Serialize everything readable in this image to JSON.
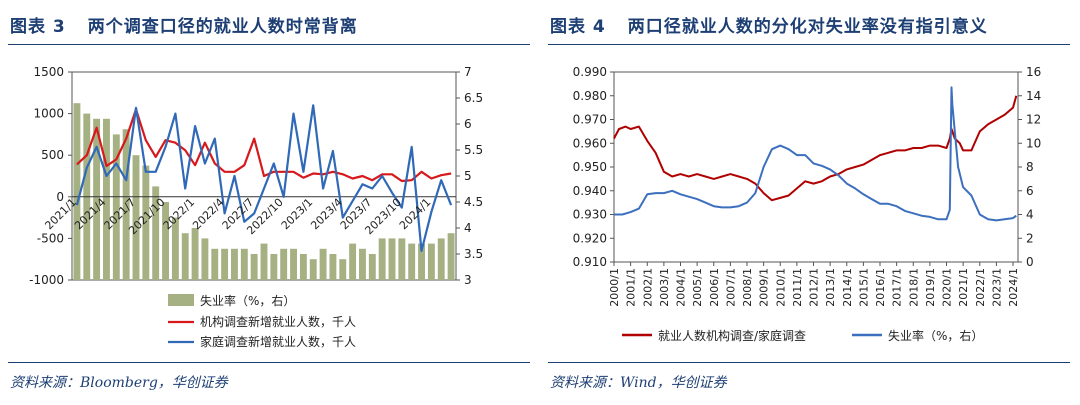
{
  "figures": [
    {
      "title_num": "图表 3",
      "title_text": "两个调查口径的就业人数时常背离",
      "source": "资料来源：Bloomberg，华创证券"
    },
    {
      "title_num": "图表 4",
      "title_text": "两口径就业人数的分化对失业率没有指引意义",
      "source": "资料来源：Wind，华创证券"
    }
  ],
  "chart_data": [
    {
      "type": "bar+line",
      "title": "",
      "xlabel": "",
      "ylabel": "",
      "ylim": [
        -1000,
        1500
      ],
      "y_ticks": [
        -1000,
        -500,
        0,
        500,
        1000,
        1500
      ],
      "y2lim": [
        3,
        7
      ],
      "y2_ticks": [
        3,
        3.5,
        4,
        4.5,
        5,
        5.5,
        6,
        6.5,
        7
      ],
      "x_tick_labels": [
        "2021/1",
        "2021/4",
        "2021/7",
        "2021/10",
        "2022/1",
        "2022/4",
        "2022/7",
        "2022/10",
        "2023/1",
        "2023/4",
        "2023/7",
        "2023/10",
        "2024/1"
      ],
      "x_tick_indices": [
        0,
        3,
        6,
        9,
        12,
        15,
        18,
        21,
        24,
        27,
        30,
        33,
        36
      ],
      "n_months": 39,
      "grid": false,
      "legend_position": "bottom",
      "series": [
        {
          "name": "失业率（%，右）",
          "kind": "bar",
          "axis": "right",
          "color": "#a5b083",
          "values": [
            6.4,
            6.2,
            6.1,
            6.1,
            5.8,
            5.9,
            5.4,
            5.2,
            4.8,
            4.5,
            4.2,
            3.9,
            4.0,
            3.8,
            3.6,
            3.6,
            3.6,
            3.6,
            3.5,
            3.7,
            3.5,
            3.6,
            3.6,
            3.5,
            3.4,
            3.6,
            3.5,
            3.4,
            3.7,
            3.6,
            3.5,
            3.8,
            3.8,
            3.8,
            3.7,
            3.7,
            3.7,
            3.8,
            3.9
          ]
        },
        {
          "name": "机构调查新增就业人数，千人",
          "kind": "line",
          "axis": "left",
          "color": "#d7191c",
          "values": [
            390,
            500,
            830,
            370,
            450,
            700,
            1050,
            680,
            480,
            680,
            650,
            560,
            380,
            650,
            400,
            300,
            300,
            380,
            700,
            250,
            300,
            300,
            300,
            230,
            280,
            270,
            300,
            270,
            220,
            250,
            200,
            270,
            270,
            190,
            200,
            300,
            220,
            260,
            280
          ]
        },
        {
          "name": "家庭调查新增就业人数，千人",
          "kind": "line",
          "axis": "left",
          "color": "#3069b7",
          "values": [
            -100,
            350,
            600,
            250,
            400,
            200,
            1070,
            300,
            300,
            600,
            1000,
            100,
            850,
            400,
            700,
            -200,
            250,
            -300,
            -200,
            100,
            400,
            0,
            1000,
            300,
            1100,
            100,
            550,
            -250,
            -50,
            150,
            100,
            250,
            50,
            -130,
            600,
            -650,
            -180,
            200,
            -100
          ]
        }
      ]
    },
    {
      "type": "line",
      "title": "",
      "xlabel": "",
      "ylabel": "",
      "ylim": [
        0.91,
        0.99
      ],
      "y_ticks": [
        0.91,
        0.92,
        0.93,
        0.94,
        0.95,
        0.96,
        0.97,
        0.98,
        0.99
      ],
      "y2lim": [
        0,
        16
      ],
      "y2_ticks": [
        0,
        2,
        4,
        6,
        8,
        10,
        12,
        14,
        16
      ],
      "x_tick_labels": [
        "2000/1",
        "2001/1",
        "2002/1",
        "2003/1",
        "2004/1",
        "2005/1",
        "2006/1",
        "2007/1",
        "2008/1",
        "2009/1",
        "2010/1",
        "2011/1",
        "2012/1",
        "2013/1",
        "2014/1",
        "2015/1",
        "2016/1",
        "2017/1",
        "2018/1",
        "2019/1",
        "2020/1",
        "2021/1",
        "2022/1",
        "2023/1",
        "2024/1"
      ],
      "x_range": [
        2000.0,
        2024.3
      ],
      "grid": false,
      "legend_position": "bottom",
      "series": [
        {
          "name": "就业人数机构调查/家庭调查",
          "axis": "left",
          "color": "#b00000",
          "x": [
            2000.0,
            2000.3,
            2000.7,
            2001.0,
            2001.5,
            2002.0,
            2002.5,
            2003.0,
            2003.5,
            2004.0,
            2004.5,
            2005.0,
            2005.5,
            2006.0,
            2006.5,
            2007.0,
            2007.5,
            2008.0,
            2008.5,
            2009.0,
            2009.5,
            2010.0,
            2010.5,
            2011.0,
            2011.5,
            2012.0,
            2012.5,
            2013.0,
            2013.5,
            2014.0,
            2014.5,
            2015.0,
            2015.5,
            2016.0,
            2016.5,
            2017.0,
            2017.5,
            2018.0,
            2018.5,
            2019.0,
            2019.5,
            2020.0,
            2020.2,
            2020.3,
            2020.5,
            2020.8,
            2021.0,
            2021.5,
            2022.0,
            2022.5,
            2023.0,
            2023.5,
            2024.0,
            2024.2
          ],
          "y": [
            0.962,
            0.966,
            0.967,
            0.966,
            0.967,
            0.961,
            0.956,
            0.948,
            0.946,
            0.947,
            0.946,
            0.947,
            0.946,
            0.945,
            0.946,
            0.947,
            0.946,
            0.945,
            0.943,
            0.939,
            0.936,
            0.937,
            0.938,
            0.941,
            0.944,
            0.943,
            0.944,
            0.946,
            0.947,
            0.949,
            0.95,
            0.951,
            0.953,
            0.955,
            0.956,
            0.957,
            0.957,
            0.958,
            0.958,
            0.959,
            0.959,
            0.958,
            0.962,
            0.966,
            0.962,
            0.96,
            0.957,
            0.957,
            0.965,
            0.968,
            0.97,
            0.972,
            0.975,
            0.98
          ]
        },
        {
          "name": "失业率（%，右）",
          "axis": "right",
          "color": "#3c6fbe",
          "x": [
            2000.0,
            2000.5,
            2001.0,
            2001.5,
            2002.0,
            2002.5,
            2003.0,
            2003.5,
            2004.0,
            2004.5,
            2005.0,
            2005.5,
            2006.0,
            2006.5,
            2007.0,
            2007.5,
            2008.0,
            2008.5,
            2009.0,
            2009.5,
            2010.0,
            2010.5,
            2011.0,
            2011.5,
            2012.0,
            2012.5,
            2013.0,
            2013.5,
            2014.0,
            2014.5,
            2015.0,
            2015.5,
            2016.0,
            2016.5,
            2017.0,
            2017.5,
            2018.0,
            2018.5,
            2019.0,
            2019.5,
            2020.0,
            2020.2,
            2020.3,
            2020.35,
            2020.5,
            2020.7,
            2021.0,
            2021.5,
            2022.0,
            2022.5,
            2023.0,
            2023.5,
            2024.0,
            2024.2
          ],
          "y": [
            4.0,
            4.0,
            4.2,
            4.5,
            5.7,
            5.8,
            5.8,
            6.0,
            5.7,
            5.5,
            5.3,
            5.0,
            4.7,
            4.6,
            4.6,
            4.7,
            5.0,
            5.8,
            8.0,
            9.5,
            9.8,
            9.5,
            9.0,
            9.0,
            8.3,
            8.1,
            7.8,
            7.3,
            6.6,
            6.2,
            5.7,
            5.3,
            4.9,
            4.9,
            4.7,
            4.3,
            4.1,
            3.9,
            3.8,
            3.6,
            3.6,
            4.4,
            14.7,
            13.3,
            11.0,
            8.0,
            6.3,
            5.6,
            4.0,
            3.6,
            3.5,
            3.6,
            3.7,
            3.9
          ]
        }
      ]
    }
  ]
}
